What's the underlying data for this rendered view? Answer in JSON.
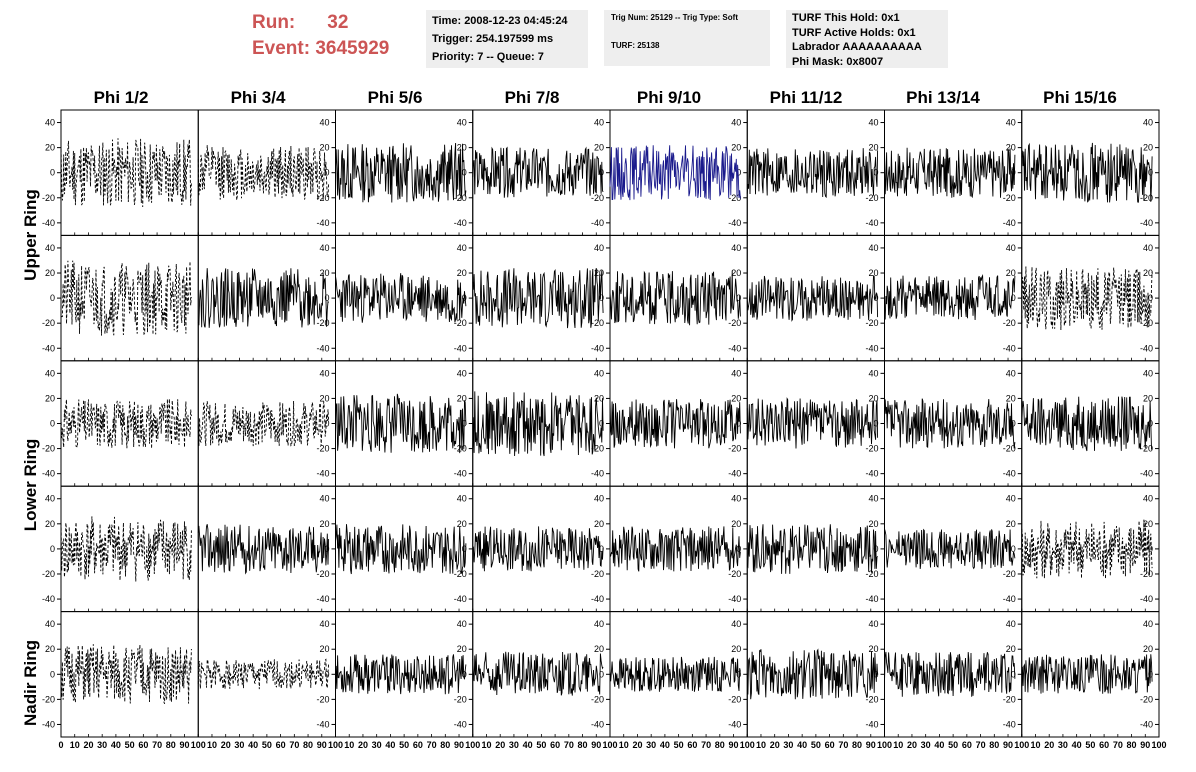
{
  "header": {
    "run_label": "Run:",
    "run_value": "32",
    "event_label": "Event:",
    "event_value": "3645929"
  },
  "time_box": {
    "line1": "Time: 2008-12-23 04:45:24",
    "line2": "Trigger: 254.197599 ms",
    "line3": "Priority: 7 -- Queue: 7"
  },
  "trig_box": {
    "line1": "Trig Num: 25129 -- Trig Type: Soft",
    "line2": "TURF: 25138"
  },
  "turf_box": {
    "line1": "TURF This Hold: 0x1",
    "line2": "TURF Active Holds: 0x1",
    "line3": "Labrador AAAAAAAAAA",
    "line4": "Phi Mask: 0x8007"
  },
  "columns": [
    "Phi 1/2",
    "Phi 3/4",
    "Phi 5/6",
    "Phi 7/8",
    "Phi 9/10",
    "Phi 11/12",
    "Phi 13/14",
    "Phi 15/16"
  ],
  "rows": [
    "Upper Ring",
    "Lower Ring",
    "Nadir Ring"
  ],
  "colors": {
    "trace": "#000000",
    "highlight_trace": "#1a1a8c",
    "frame": "#000000"
  },
  "chart_data": {
    "type": "line",
    "description_note_free": true,
    "panel_rows": 5,
    "panel_cols": 8,
    "xlim": [
      0,
      100
    ],
    "ylim": [
      -50,
      50
    ],
    "x_tick_labels": [
      "0",
      "10",
      "20",
      "30",
      "40",
      "50",
      "60",
      "70",
      "80",
      "90",
      "100"
    ],
    "y_tick_labels": [
      "40",
      "20",
      "0",
      "-20",
      "-40"
    ],
    "y_ticks": [
      40,
      20,
      0,
      -20,
      -40
    ],
    "dashed_panels": [
      [
        0,
        0
      ],
      [
        0,
        1
      ],
      [
        1,
        0
      ],
      [
        1,
        7
      ],
      [
        2,
        0
      ],
      [
        2,
        1
      ],
      [
        3,
        0
      ],
      [
        3,
        7
      ],
      [
        4,
        0
      ],
      [
        4,
        1
      ]
    ],
    "highlight_panels": [
      [
        0,
        4
      ]
    ],
    "panels": [
      {
        "row": 0,
        "col": 0,
        "seed": 11,
        "amp": 28
      },
      {
        "row": 0,
        "col": 1,
        "seed": 12,
        "amp": 22
      },
      {
        "row": 0,
        "col": 2,
        "seed": 13,
        "amp": 24
      },
      {
        "row": 0,
        "col": 3,
        "seed": 14,
        "amp": 20
      },
      {
        "row": 0,
        "col": 4,
        "seed": 15,
        "amp": 22
      },
      {
        "row": 0,
        "col": 5,
        "seed": 16,
        "amp": 20
      },
      {
        "row": 0,
        "col": 6,
        "seed": 17,
        "amp": 20
      },
      {
        "row": 0,
        "col": 7,
        "seed": 18,
        "amp": 24
      },
      {
        "row": 1,
        "col": 0,
        "seed": 21,
        "amp": 30
      },
      {
        "row": 1,
        "col": 1,
        "seed": 22,
        "amp": 24
      },
      {
        "row": 1,
        "col": 2,
        "seed": 23,
        "amp": 20
      },
      {
        "row": 1,
        "col": 3,
        "seed": 24,
        "amp": 24
      },
      {
        "row": 1,
        "col": 4,
        "seed": 25,
        "amp": 22
      },
      {
        "row": 1,
        "col": 5,
        "seed": 26,
        "amp": 18
      },
      {
        "row": 1,
        "col": 6,
        "seed": 27,
        "amp": 18
      },
      {
        "row": 1,
        "col": 7,
        "seed": 28,
        "amp": 26
      },
      {
        "row": 2,
        "col": 0,
        "seed": 31,
        "amp": 20
      },
      {
        "row": 2,
        "col": 1,
        "seed": 32,
        "amp": 18
      },
      {
        "row": 2,
        "col": 2,
        "seed": 33,
        "amp": 24
      },
      {
        "row": 2,
        "col": 3,
        "seed": 34,
        "amp": 26
      },
      {
        "row": 2,
        "col": 4,
        "seed": 35,
        "amp": 20
      },
      {
        "row": 2,
        "col": 5,
        "seed": 36,
        "amp": 20
      },
      {
        "row": 2,
        "col": 6,
        "seed": 37,
        "amp": 20
      },
      {
        "row": 2,
        "col": 7,
        "seed": 38,
        "amp": 22
      },
      {
        "row": 3,
        "col": 0,
        "seed": 41,
        "amp": 26
      },
      {
        "row": 3,
        "col": 1,
        "seed": 42,
        "amp": 20
      },
      {
        "row": 3,
        "col": 2,
        "seed": 43,
        "amp": 20
      },
      {
        "row": 3,
        "col": 3,
        "seed": 44,
        "amp": 18
      },
      {
        "row": 3,
        "col": 4,
        "seed": 45,
        "amp": 18
      },
      {
        "row": 3,
        "col": 5,
        "seed": 46,
        "amp": 20
      },
      {
        "row": 3,
        "col": 6,
        "seed": 47,
        "amp": 16
      },
      {
        "row": 3,
        "col": 7,
        "seed": 48,
        "amp": 24
      },
      {
        "row": 4,
        "col": 0,
        "seed": 51,
        "amp": 24
      },
      {
        "row": 4,
        "col": 1,
        "seed": 52,
        "amp": 12
      },
      {
        "row": 4,
        "col": 2,
        "seed": 53,
        "amp": 16
      },
      {
        "row": 4,
        "col": 3,
        "seed": 54,
        "amp": 18
      },
      {
        "row": 4,
        "col": 4,
        "seed": 55,
        "amp": 14
      },
      {
        "row": 4,
        "col": 5,
        "seed": 56,
        "amp": 20
      },
      {
        "row": 4,
        "col": 6,
        "seed": 57,
        "amp": 18
      },
      {
        "row": 4,
        "col": 7,
        "seed": 58,
        "amp": 16
      }
    ]
  }
}
